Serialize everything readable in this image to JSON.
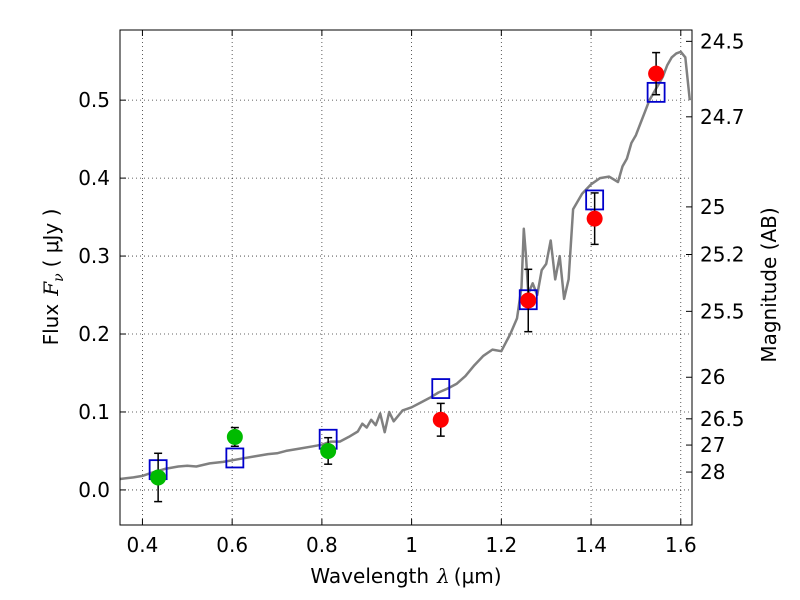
{
  "chart_data": {
    "type": "scatter",
    "xlabel": {
      "pre": "Wavelength",
      "sym": "λ",
      "post": "(μm)"
    },
    "ylabel": {
      "pre": "Flux",
      "sym": "F",
      "sub": "ν",
      "post": "( μJy )"
    },
    "y2label": "Magnitude (AB)",
    "xlim": [
      0.35,
      1.625
    ],
    "ylim": [
      -0.045,
      0.59
    ],
    "grid": true,
    "x_ticks": [
      {
        "value": 0.4,
        "label": "0.4"
      },
      {
        "value": 0.6,
        "label": "0.6"
      },
      {
        "value": 0.8,
        "label": "0.8"
      },
      {
        "value": 1.0,
        "label": "1"
      },
      {
        "value": 1.2,
        "label": "1.2"
      },
      {
        "value": 1.4,
        "label": "1.4"
      },
      {
        "value": 1.6,
        "label": "1.6"
      }
    ],
    "y_ticks": [
      {
        "value": 0.0,
        "label": "0.0"
      },
      {
        "value": 0.1,
        "label": "0.1"
      },
      {
        "value": 0.2,
        "label": "0.2"
      },
      {
        "value": 0.3,
        "label": "0.3"
      },
      {
        "value": 0.4,
        "label": "0.4"
      },
      {
        "value": 0.5,
        "label": "0.5"
      }
    ],
    "mag_ticks": [
      {
        "value": 24.5,
        "label": "24.5"
      },
      {
        "value": 24.7,
        "label": "24.7"
      },
      {
        "value": 25.0,
        "label": "25"
      },
      {
        "value": 25.2,
        "label": "25.2"
      },
      {
        "value": 25.5,
        "label": "25.5"
      },
      {
        "value": 26.0,
        "label": "26"
      },
      {
        "value": 26.5,
        "label": "26.5"
      },
      {
        "value": 27.0,
        "label": "27"
      },
      {
        "value": 28.0,
        "label": "28"
      }
    ],
    "series": [
      {
        "marker": "circle",
        "color": "#00bb00",
        "points": [
          {
            "x": 0.435,
            "y": 0.016,
            "err": 0.031
          },
          {
            "x": 0.606,
            "y": 0.068,
            "err": 0.012
          },
          {
            "x": 0.814,
            "y": 0.05,
            "err": 0.017
          }
        ]
      },
      {
        "marker": "circle",
        "color": "#ff0000",
        "points": [
          {
            "x": 1.065,
            "y": 0.09,
            "err": 0.021
          },
          {
            "x": 1.26,
            "y": 0.243,
            "err": 0.04
          },
          {
            "x": 1.408,
            "y": 0.348,
            "err": 0.033
          },
          {
            "x": 1.545,
            "y": 0.534,
            "err": 0.027
          }
        ]
      },
      {
        "marker": "square",
        "color": "#0000cc",
        "points": [
          {
            "x": 0.435,
            "y": 0.026
          },
          {
            "x": 0.606,
            "y": 0.041
          },
          {
            "x": 0.814,
            "y": 0.065
          },
          {
            "x": 1.065,
            "y": 0.13
          },
          {
            "x": 1.26,
            "y": 0.244
          },
          {
            "x": 1.408,
            "y": 0.372
          },
          {
            "x": 1.545,
            "y": 0.51
          }
        ]
      }
    ],
    "model_curve": {
      "color": "#808080",
      "points": [
        [
          0.35,
          0.014
        ],
        [
          0.38,
          0.016
        ],
        [
          0.4,
          0.018
        ],
        [
          0.42,
          0.022
        ],
        [
          0.45,
          0.027
        ],
        [
          0.48,
          0.03
        ],
        [
          0.5,
          0.031
        ],
        [
          0.52,
          0.03
        ],
        [
          0.55,
          0.034
        ],
        [
          0.58,
          0.036
        ],
        [
          0.6,
          0.038
        ],
        [
          0.62,
          0.04
        ],
        [
          0.65,
          0.043
        ],
        [
          0.68,
          0.046
        ],
        [
          0.7,
          0.047
        ],
        [
          0.72,
          0.05
        ],
        [
          0.75,
          0.053
        ],
        [
          0.78,
          0.056
        ],
        [
          0.8,
          0.058
        ],
        [
          0.82,
          0.062
        ],
        [
          0.84,
          0.062
        ],
        [
          0.86,
          0.068
        ],
        [
          0.88,
          0.075
        ],
        [
          0.89,
          0.085
        ],
        [
          0.9,
          0.08
        ],
        [
          0.91,
          0.09
        ],
        [
          0.92,
          0.083
        ],
        [
          0.93,
          0.098
        ],
        [
          0.94,
          0.074
        ],
        [
          0.95,
          0.1
        ],
        [
          0.96,
          0.088
        ],
        [
          0.98,
          0.102
        ],
        [
          1.0,
          0.106
        ],
        [
          1.02,
          0.112
        ],
        [
          1.04,
          0.118
        ],
        [
          1.06,
          0.125
        ],
        [
          1.08,
          0.13
        ],
        [
          1.1,
          0.136
        ],
        [
          1.12,
          0.146
        ],
        [
          1.14,
          0.16
        ],
        [
          1.16,
          0.172
        ],
        [
          1.18,
          0.18
        ],
        [
          1.2,
          0.178
        ],
        [
          1.22,
          0.2
        ],
        [
          1.235,
          0.22
        ],
        [
          1.245,
          0.26
        ],
        [
          1.25,
          0.335
        ],
        [
          1.255,
          0.3
        ],
        [
          1.26,
          0.252
        ],
        [
          1.27,
          0.265
        ],
        [
          1.28,
          0.25
        ],
        [
          1.29,
          0.282
        ],
        [
          1.3,
          0.29
        ],
        [
          1.31,
          0.32
        ],
        [
          1.32,
          0.27
        ],
        [
          1.33,
          0.3
        ],
        [
          1.34,
          0.245
        ],
        [
          1.35,
          0.27
        ],
        [
          1.36,
          0.36
        ],
        [
          1.38,
          0.38
        ],
        [
          1.4,
          0.392
        ],
        [
          1.42,
          0.4
        ],
        [
          1.44,
          0.402
        ],
        [
          1.46,
          0.395
        ],
        [
          1.47,
          0.415
        ],
        [
          1.48,
          0.425
        ],
        [
          1.49,
          0.445
        ],
        [
          1.5,
          0.455
        ],
        [
          1.51,
          0.47
        ],
        [
          1.52,
          0.485
        ],
        [
          1.53,
          0.5
        ],
        [
          1.54,
          0.51
        ],
        [
          1.55,
          0.52
        ],
        [
          1.56,
          0.53
        ],
        [
          1.57,
          0.545
        ],
        [
          1.58,
          0.555
        ],
        [
          1.59,
          0.56
        ],
        [
          1.6,
          0.562
        ],
        [
          1.61,
          0.555
        ],
        [
          1.62,
          0.5
        ]
      ]
    }
  }
}
